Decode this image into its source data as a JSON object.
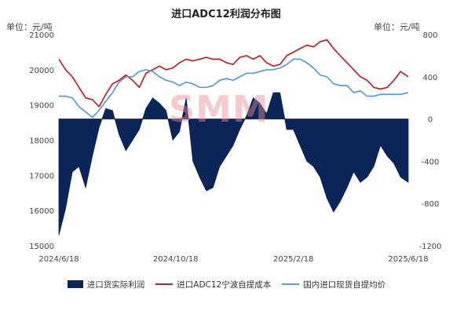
{
  "chart_data": {
    "type": "area",
    "title": "进口ADC12利润分布图",
    "unit_left": "单位：元/吨",
    "unit_right": "单位：元/吨",
    "x_dates": [
      "2024-06-18",
      "2024-06-25",
      "2024-07-02",
      "2024-07-09",
      "2024-07-16",
      "2024-07-23",
      "2024-07-30",
      "2024-08-06",
      "2024-08-13",
      "2024-08-20",
      "2024-08-27",
      "2024-09-03",
      "2024-09-10",
      "2024-09-17",
      "2024-09-24",
      "2024-10-01",
      "2024-10-08",
      "2024-10-15",
      "2024-10-22",
      "2024-10-29",
      "2024-11-05",
      "2024-11-12",
      "2024-11-19",
      "2024-11-26",
      "2024-12-03",
      "2024-12-10",
      "2024-12-17",
      "2024-12-24",
      "2024-12-31",
      "2025-01-07",
      "2025-01-14",
      "2025-01-21",
      "2025-01-28",
      "2025-02-04",
      "2025-02-11",
      "2025-02-18",
      "2025-02-25",
      "2025-03-04",
      "2025-03-11",
      "2025-03-18",
      "2025-03-25",
      "2025-04-01",
      "2025-04-08",
      "2025-04-15",
      "2025-04-22",
      "2025-04-29",
      "2025-05-06",
      "2025-05-13",
      "2025-05-20",
      "2025-05-27",
      "2025-06-03",
      "2025-06-10",
      "2025-06-18"
    ],
    "x_ticks": [
      "2024/6/18",
      "2024/10/18",
      "2025/2/18",
      "2025/6/18"
    ],
    "y_left": {
      "min": 15000,
      "max": 21000,
      "ticks": [
        15000,
        16000,
        17000,
        18000,
        19000,
        20000,
        21000
      ]
    },
    "y_right": {
      "min": -1200,
      "max": 800,
      "ticks": [
        -1200,
        -800,
        -400,
        0,
        400,
        800
      ]
    },
    "series": [
      {
        "name": "进口货实际利润",
        "type": "area",
        "axis": "right",
        "color": "#0b2559",
        "values": [
          -1100,
          -850,
          -500,
          -450,
          -650,
          -350,
          -80,
          100,
          80,
          -150,
          -300,
          -200,
          -100,
          100,
          200,
          150,
          80,
          -200,
          -120,
          200,
          -400,
          -550,
          -680,
          -650,
          -450,
          -350,
          -250,
          -100,
          30,
          200,
          150,
          50,
          250,
          250,
          -100,
          -100,
          -250,
          -400,
          -450,
          -550,
          -750,
          -880,
          -780,
          -650,
          -500,
          -600,
          -550,
          -450,
          -250,
          -350,
          -420,
          -550,
          -600
        ]
      },
      {
        "name": "进口ADC12宁波自提成本",
        "type": "line",
        "axis": "left",
        "color": "#c0202a",
        "values": [
          20300,
          20000,
          19800,
          19500,
          19200,
          19150,
          18950,
          19300,
          19600,
          19700,
          19850,
          19700,
          19500,
          19900,
          20000,
          20100,
          20000,
          20050,
          20200,
          20300,
          20250,
          20300,
          20350,
          20300,
          20300,
          20200,
          20150,
          20350,
          20400,
          20300,
          20400,
          20200,
          20100,
          20150,
          20400,
          20500,
          20600,
          20700,
          20650,
          20800,
          20850,
          20600,
          20400,
          20200,
          20000,
          19800,
          19700,
          19500,
          19450,
          19500,
          19700,
          19950,
          19800
        ]
      },
      {
        "name": "国内进口现货自提均价",
        "type": "line",
        "axis": "left",
        "color": "#5b9bd5",
        "values": [
          19250,
          19250,
          19200,
          18950,
          18800,
          18650,
          18850,
          19100,
          19350,
          19650,
          19800,
          19800,
          19950,
          20000,
          19950,
          19800,
          19700,
          19650,
          19550,
          19650,
          19600,
          19500,
          19500,
          19550,
          19700,
          19750,
          19700,
          19800,
          19900,
          19900,
          19950,
          20000,
          20000,
          20050,
          20150,
          20300,
          20300,
          20200,
          20050,
          19850,
          19800,
          19600,
          19550,
          19550,
          19350,
          19400,
          19250,
          19250,
          19300,
          19300,
          19300,
          19300,
          19350
        ]
      }
    ]
  },
  "watermark_text": "SMM",
  "colors": {
    "background": "#ffffff",
    "zero_line": "#333333"
  }
}
